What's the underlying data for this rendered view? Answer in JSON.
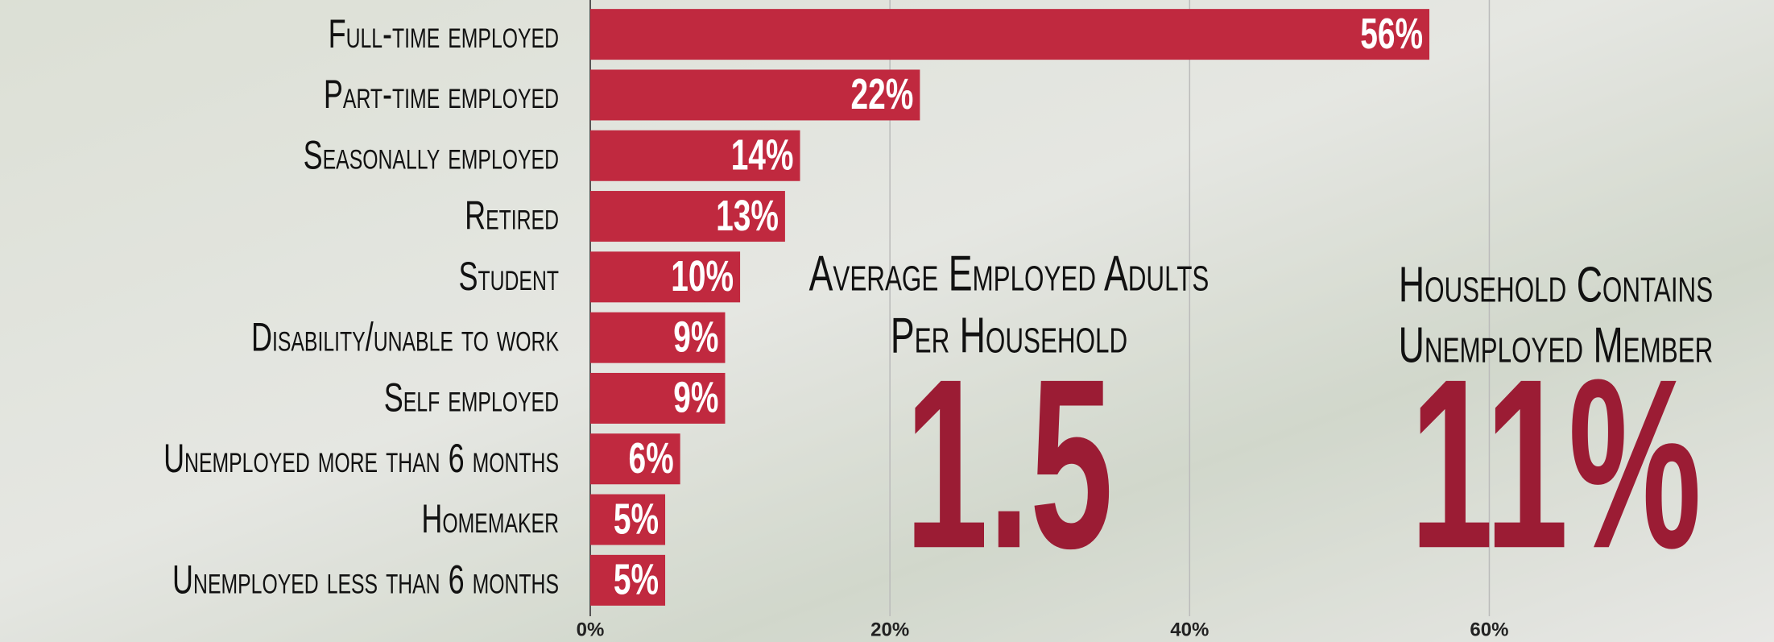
{
  "chart_data": {
    "type": "bar",
    "orientation": "horizontal",
    "categories": [
      "Full-time employed",
      "Part-time employed",
      "Seasonally employed",
      "Retired",
      "Student",
      "Disability/unable to work",
      "Self employed",
      "Unemployed more than 6 months",
      "Homemaker",
      "Unemployed less than 6 months"
    ],
    "values": [
      56,
      22,
      14,
      13,
      10,
      9,
      9,
      6,
      5,
      5
    ],
    "value_labels": [
      "56%",
      "22%",
      "14%",
      "13%",
      "10%",
      "9%",
      "9%",
      "6%",
      "5%",
      "5%"
    ],
    "color": "#c0293f",
    "xlim": [
      0,
      79
    ],
    "xticks": [
      {
        "value": 0,
        "label": "0%"
      },
      {
        "value": 20,
        "label": "20%"
      },
      {
        "value": 40,
        "label": "40%"
      },
      {
        "value": 60,
        "label": "60%"
      }
    ],
    "grid": true,
    "annotations": [
      {
        "title": [
          "Average Employed Adults",
          "Per Household"
        ],
        "value": "1.5"
      },
      {
        "title": [
          "Household Contains",
          "Unemployed Member"
        ],
        "value": "11%"
      }
    ]
  }
}
